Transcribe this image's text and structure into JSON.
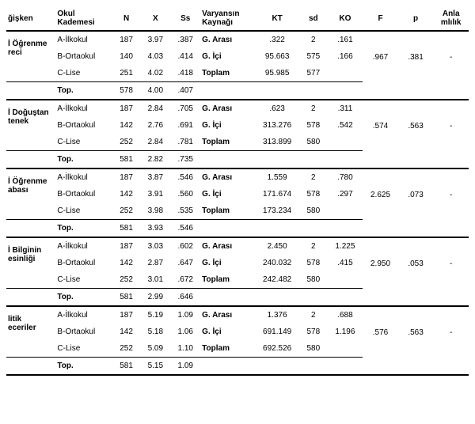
{
  "headers": {
    "h0": "ğişken",
    "h1a": "Okul",
    "h1b": "Kademesi",
    "h2": "N",
    "h3": "X",
    "h4": "Ss",
    "h5a": "Varyansın",
    "h5b": "Kaynağı",
    "h6": "KT",
    "h7": "sd",
    "h8": "KO",
    "h9": "F",
    "h10": "p",
    "h11a": "Anla",
    "h11b": "mlılık"
  },
  "groups": [
    {
      "label_a": "İ Öğrenme",
      "label_b": "reci",
      "rows": [
        {
          "k": "A-İlkokul",
          "n": "187",
          "x": "3.97",
          "ss": ".387",
          "vk": "G. Arası",
          "kt": ".322",
          "sd": "2",
          "ko": ".161"
        },
        {
          "k": "B-Ortaokul",
          "n": "140",
          "x": "4.03",
          "ss": ".414",
          "vk": "G. İçi",
          "kt": "95.663",
          "sd": "575",
          "ko": ".166"
        },
        {
          "k": "C-Lise",
          "n": "251",
          "x": "4.02",
          "ss": ".418",
          "vk": "Toplam",
          "kt": "95.985",
          "sd": "577",
          "ko": ""
        }
      ],
      "top": {
        "k": "Top.",
        "n": "578",
        "x": "4.00",
        "ss": ".407"
      },
      "f": ".967",
      "p": ".381",
      "anl": "-"
    },
    {
      "label_a": "İ Doğuştan",
      "label_b": "tenek",
      "rows": [
        {
          "k": "A-İlkokul",
          "n": "187",
          "x": "2.84",
          "ss": ".705",
          "vk": "G. Arası",
          "kt": ".623",
          "sd": "2",
          "ko": ".311"
        },
        {
          "k": "B-Ortaokul",
          "n": "142",
          "x": "2.76",
          "ss": ".691",
          "vk": "G. İçi",
          "kt": "313.276",
          "sd": "578",
          "ko": ".542"
        },
        {
          "k": "C-Lise",
          "n": "252",
          "x": "2.84",
          "ss": ".781",
          "vk": "Toplam",
          "kt": "313.899",
          "sd": "580",
          "ko": ""
        }
      ],
      "top": {
        "k": "Top.",
        "n": "581",
        "x": "2.82",
        "ss": ".735"
      },
      "f": ".574",
      "p": ".563",
      "anl": "-"
    },
    {
      "label_a": "İ Öğrenme",
      "label_b": "abası",
      "rows": [
        {
          "k": "A-İlkokul",
          "n": "187",
          "x": "3.87",
          "ss": ".546",
          "vk": "G. Arası",
          "kt": "1.559",
          "sd": "2",
          "ko": ".780"
        },
        {
          "k": "B-Ortaokul",
          "n": "142",
          "x": "3.91",
          "ss": ".560",
          "vk": "G. İçi",
          "kt": "171.674",
          "sd": "578",
          "ko": ".297"
        },
        {
          "k": "C-Lise",
          "n": "252",
          "x": "3.98",
          "ss": ".535",
          "vk": "Toplam",
          "kt": "173.234",
          "sd": "580",
          "ko": ""
        }
      ],
      "top": {
        "k": "Top.",
        "n": "581",
        "x": "3.93",
        "ss": ".546"
      },
      "f": "2.625",
      "p": ".073",
      "anl": "-"
    },
    {
      "label_a": "İ Bilginin",
      "label_b": "esinliği",
      "rows": [
        {
          "k": "A-İlkokul",
          "n": "187",
          "x": "3.03",
          "ss": ".602",
          "vk": "G. Arası",
          "kt": "2.450",
          "sd": "2",
          "ko": "1.225"
        },
        {
          "k": "B-Ortaokul",
          "n": "142",
          "x": "2.87",
          "ss": ".647",
          "vk": "G. İçi",
          "kt": "240.032",
          "sd": "578",
          "ko": ".415"
        },
        {
          "k": "C-Lise",
          "n": "252",
          "x": "3.01",
          "ss": ".672",
          "vk": "Toplam",
          "kt": "242.482",
          "sd": "580",
          "ko": ""
        }
      ],
      "top": {
        "k": "Top.",
        "n": "581",
        "x": "2.99",
        "ss": ".646"
      },
      "f": "2.950",
      "p": ".053",
      "anl": "-"
    },
    {
      "label_a": "litik",
      "label_b": "eceriler",
      "rows": [
        {
          "k": "A-İlkokul",
          "n": "187",
          "x": "5.19",
          "ss": "1.09",
          "vk": "G. Arası",
          "kt": "1.376",
          "sd": "2",
          "ko": ".688"
        },
        {
          "k": "B-Ortaokul",
          "n": "142",
          "x": "5.18",
          "ss": "1.06",
          "vk": "G. İçi",
          "kt": "691.149",
          "sd": "578",
          "ko": "1.196"
        },
        {
          "k": "C-Lise",
          "n": "252",
          "x": "5.09",
          "ss": "1.10",
          "vk": "Toplam",
          "kt": "692.526",
          "sd": "580",
          "ko": ""
        }
      ],
      "top": {
        "k": "Top.",
        "n": "581",
        "x": "5.15",
        "ss": "1.09"
      },
      "f": ".576",
      "p": ".563",
      "anl": "-"
    }
  ]
}
